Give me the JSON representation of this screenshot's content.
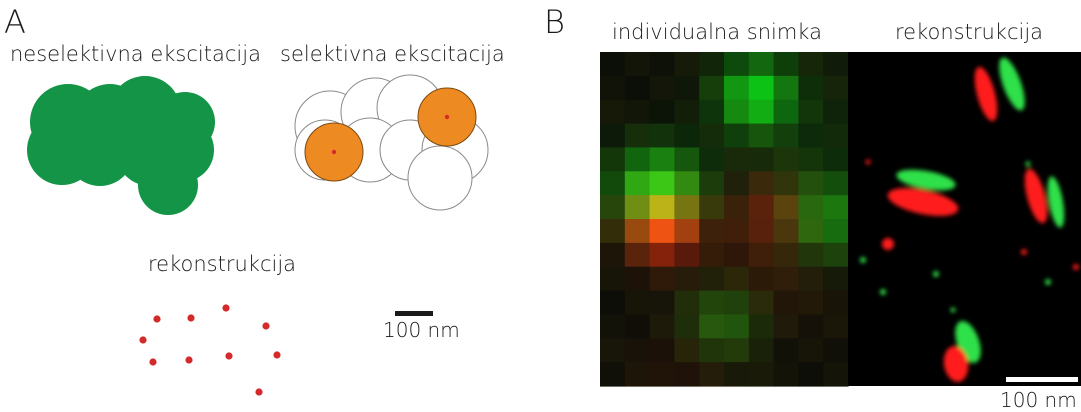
{
  "panel_a": {
    "letter": "A",
    "label_nonselective": "neselektivna ekscitacija",
    "label_selective": "selektivna ekscitacija",
    "label_reconstruction": "rekonstrukcija",
    "scalebar_label": "100 nm",
    "colors": {
      "green": "#149447",
      "orange": "#ee8a22",
      "molecule_red": "#d42a2a",
      "outline": "#7a7a7a"
    }
  },
  "panel_b": {
    "letter": "B",
    "label_individual": "individualna snimka",
    "label_reconstruction": "rekonstrukcija",
    "scalebar_label": "100 nm",
    "colors": {
      "red": "#ff1a1a",
      "green": "#2ee04a",
      "background": "#000000"
    }
  }
}
